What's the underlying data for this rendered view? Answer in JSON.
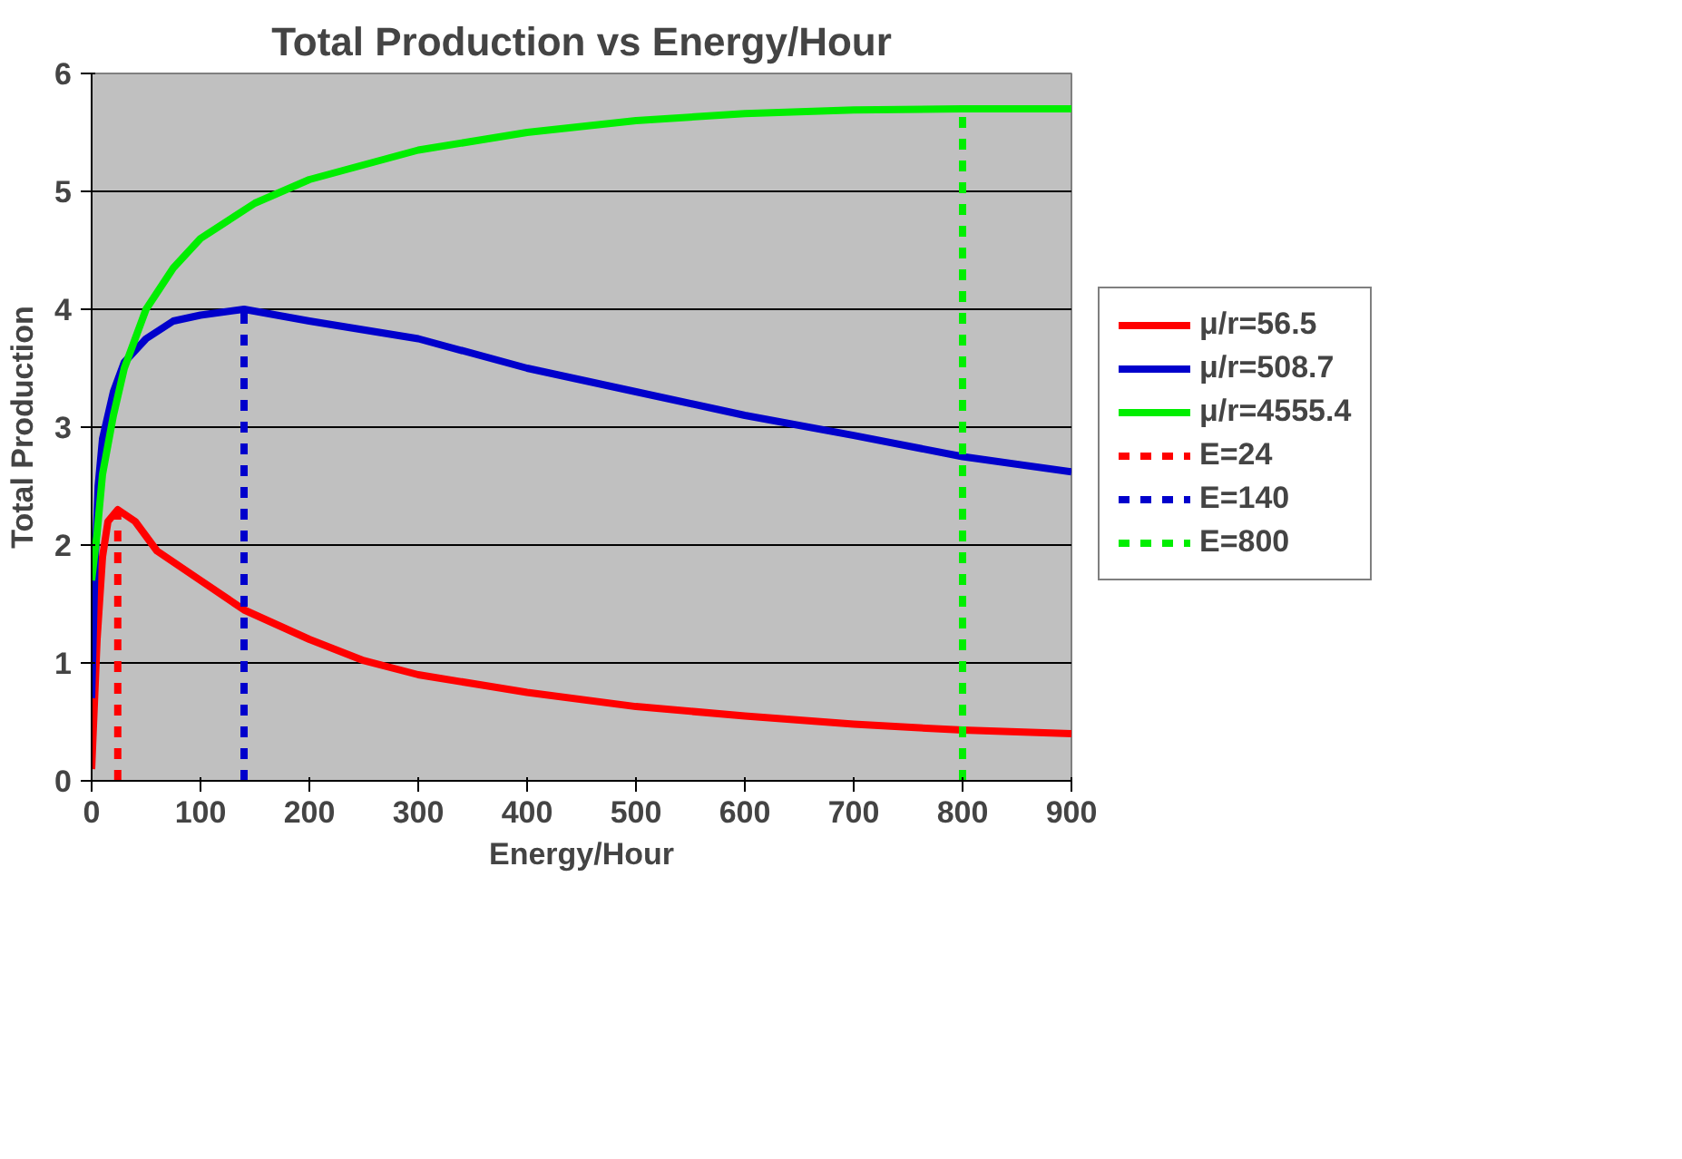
{
  "chart_data": {
    "type": "line",
    "title": "Total Production vs Energy/Hour",
    "xlabel": "Energy/Hour",
    "ylabel": "Total Production",
    "xlim": [
      0,
      900
    ],
    "xticks": [
      0,
      100,
      200,
      300,
      400,
      500,
      600,
      700,
      800,
      900
    ],
    "ylim": [
      0,
      6
    ],
    "yticks": [
      0,
      1,
      2,
      3,
      4,
      5,
      6
    ],
    "grid": "y",
    "legend": "right",
    "line_style": "solid",
    "series": [
      {
        "name": "μ/r=56.5",
        "color": "#ff0000",
        "x": [
          0,
          5,
          10,
          15,
          24,
          40,
          60,
          100,
          140,
          200,
          250,
          300,
          400,
          500,
          600,
          700,
          800,
          900
        ],
        "values": [
          0.1,
          1.2,
          1.9,
          2.2,
          2.3,
          2.2,
          1.95,
          1.7,
          1.45,
          1.2,
          1.02,
          0.9,
          0.75,
          0.63,
          0.55,
          0.48,
          0.43,
          0.4
        ]
      },
      {
        "name": "μ/r=508.7",
        "color": "#0000cc",
        "x": [
          0,
          3,
          6,
          10,
          20,
          30,
          50,
          75,
          100,
          140,
          200,
          300,
          400,
          500,
          600,
          700,
          800,
          900
        ],
        "values": [
          0.7,
          1.8,
          2.5,
          2.9,
          3.3,
          3.55,
          3.75,
          3.9,
          3.95,
          4.0,
          3.9,
          3.75,
          3.5,
          3.3,
          3.1,
          2.93,
          2.75,
          2.62
        ]
      },
      {
        "name": "μ/r=4555.4",
        "color": "#00ee00",
        "x": [
          0,
          5,
          10,
          20,
          30,
          50,
          75,
          100,
          150,
          200,
          300,
          400,
          500,
          600,
          700,
          800,
          900
        ],
        "values": [
          1.7,
          2.1,
          2.6,
          3.1,
          3.5,
          4.0,
          4.35,
          4.6,
          4.9,
          5.1,
          5.35,
          5.5,
          5.6,
          5.66,
          5.69,
          5.7,
          5.7
        ]
      },
      {
        "name": "E=24",
        "color": "#ff0000",
        "line_style": "dashed",
        "x": [
          24,
          24
        ],
        "values": [
          0,
          2.3
        ]
      },
      {
        "name": "E=140",
        "color": "#0000cc",
        "line_style": "dashed",
        "x": [
          140,
          140
        ],
        "values": [
          0,
          4.0
        ]
      },
      {
        "name": "E=800",
        "color": "#00ee00",
        "line_style": "dashed",
        "x": [
          800,
          800
        ],
        "values": [
          0,
          5.7
        ]
      }
    ]
  }
}
